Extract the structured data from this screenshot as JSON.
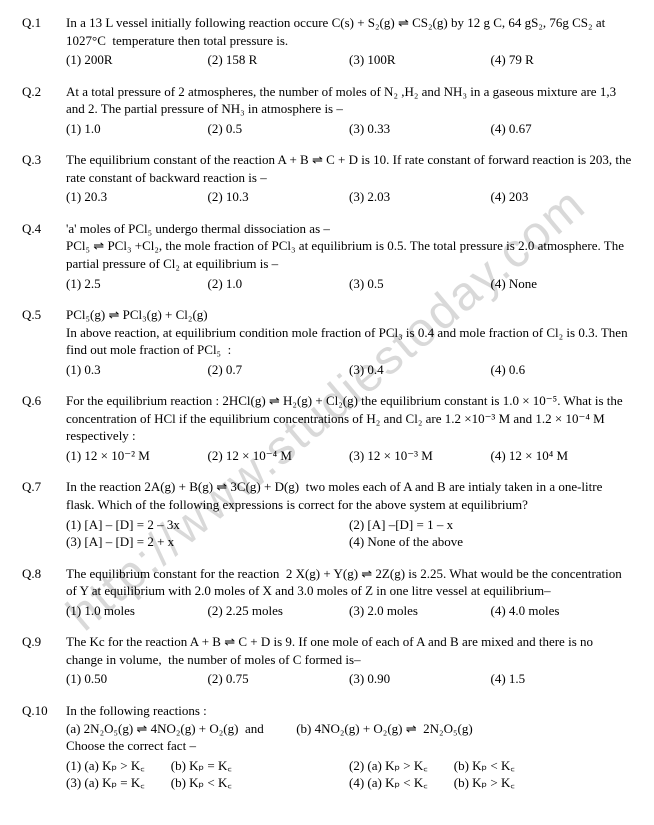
{
  "watermark": "http://www.studiestoday.com",
  "questions": [
    {
      "num": "Q.1",
      "stem": "In a 13 L vessel initially following reaction occure C(s) + S₂(g) ⇌ CS₂(g) by 12 g C, 64 gS₂, 76g CS₂ at 1027°C  temperature then total pressure is.",
      "opts": [
        "(1) 200R",
        "(2) 158 R",
        "(3) 100R",
        "(4) 79 R"
      ],
      "layout": "quarter"
    },
    {
      "num": "Q.2",
      "stem": "At a total pressure of 2 atmospheres, the number of moles of N₂ ,H₂ and NH₃ in a gaseous mixture are 1,3 and 2. The partial pressure of NH₃ in atmosphere is –",
      "opts": [
        "(1) 1.0",
        "(2) 0.5",
        "(3) 0.33",
        "(4) 0.67"
      ],
      "layout": "quarter"
    },
    {
      "num": "Q.3",
      "stem": "The equilibrium constant of the reaction A + B ⇌ C + D is 10. If rate constant of forward reaction is 203, the rate constant of backward reaction is –",
      "opts": [
        "(1) 20.3",
        "(2) 10.3",
        "(3) 2.03",
        "(4) 203"
      ],
      "layout": "quarter"
    },
    {
      "num": "Q.4",
      "stem": "'a' moles of PCl₅ undergo thermal dissociation as –\nPCl₅ ⇌ PCl₃ +Cl₂, the mole fraction of PCl₃ at equilibrium is 0.5. The total pressure is 2.0 atmosphere. The partial pressure of Cl₂ at equilibrium is –",
      "opts": [
        "(1) 2.5",
        "(2) 1.0",
        "(3) 0.5",
        "(4) None"
      ],
      "layout": "quarter"
    },
    {
      "num": "Q.5",
      "stem": "PCl₅(g) ⇌ PCl₃(g) + Cl₂(g)\nIn above reaction, at equilibrium condition mole fraction of PCl₃ is 0.4 and mole fraction of Cl₂ is 0.3. Then find out mole fraction of PCl₅  :",
      "opts": [
        "(1) 0.3",
        "(2) 0.7",
        "(3) 0.4",
        "(4) 0.6"
      ],
      "layout": "quarter"
    },
    {
      "num": "Q.6",
      "stem": "For the equilibrium reaction : 2HCl(g) ⇌ H₂(g) + Cl₂(g) the equilibrium constant is 1.0 × 10⁻⁵. What is the concentration of HCl if the equilibrium concentrations of H₂ and Cl₂ are 1.2 ×10⁻³ M and 1.2 × 10⁻⁴ M respectively :",
      "opts": [
        "(1) 12 × 10⁻² M",
        "(2) 12 × 10⁻⁴ M",
        "(3) 12 × 10⁻³ M",
        "(4) 12 × 10⁴ M"
      ],
      "layout": "quarter"
    },
    {
      "num": "Q.7",
      "stem": "In the reaction 2A(g) + B(g) ⇌ 3C(g) + D(g)  two moles each of A and B are intialy taken in a one-litre flask. Which of the following expressions is correct for the above system at equilibrium?",
      "opts": [
        "(1) [A] – [D] = 2 – 3x",
        "(2) [A] –[D] = 1 – x",
        "(3) [A] – [D] = 2 + x",
        "(4) None of the above"
      ],
      "layout": "half"
    },
    {
      "num": "Q.8",
      "stem": "The equilibrium constant for the reaction  2 X(g) + Y(g) ⇌ 2Z(g) is 2.25. What would be the concentration of Y at equilibrium with 2.0 moles of X and 3.0 moles of Z in one litre vessel at equilibrium–",
      "opts": [
        "(1) 1.0 moles",
        "(2) 2.25 moles",
        "(3) 2.0 moles",
        "(4) 4.0 moles"
      ],
      "layout": "quarter"
    },
    {
      "num": "Q.9",
      "stem": "The Kc for the reaction A + B ⇌ C + D is 9. If one mole of each of A and B are mixed and there is no change in volume,  the number of moles of C formed is–",
      "opts": [
        "(1) 0.50",
        "(2) 0.75",
        "(3) 0.90",
        "(4) 1.5"
      ],
      "layout": "quarter"
    },
    {
      "num": "Q.10",
      "stem": "In the following reactions :\n(a) 2N₂O₅(g) ⇌ 4NO₂(g) + O₂(g)  and          (b) 4NO₂(g) + O₂(g) ⇌  2N₂O₅(g)\nChoose the correct fact –",
      "opts": [
        "(1) (a) Kₚ > K꜀        (b) Kₚ = K꜀",
        "(2) (a) Kₚ > K꜀        (b) Kₚ < K꜀",
        "(3) (a) Kₚ = K꜀        (b) Kₚ < K꜀",
        "(4) (a) Kₚ < K꜀        (b) Kₚ > K꜀"
      ],
      "layout": "half"
    }
  ]
}
